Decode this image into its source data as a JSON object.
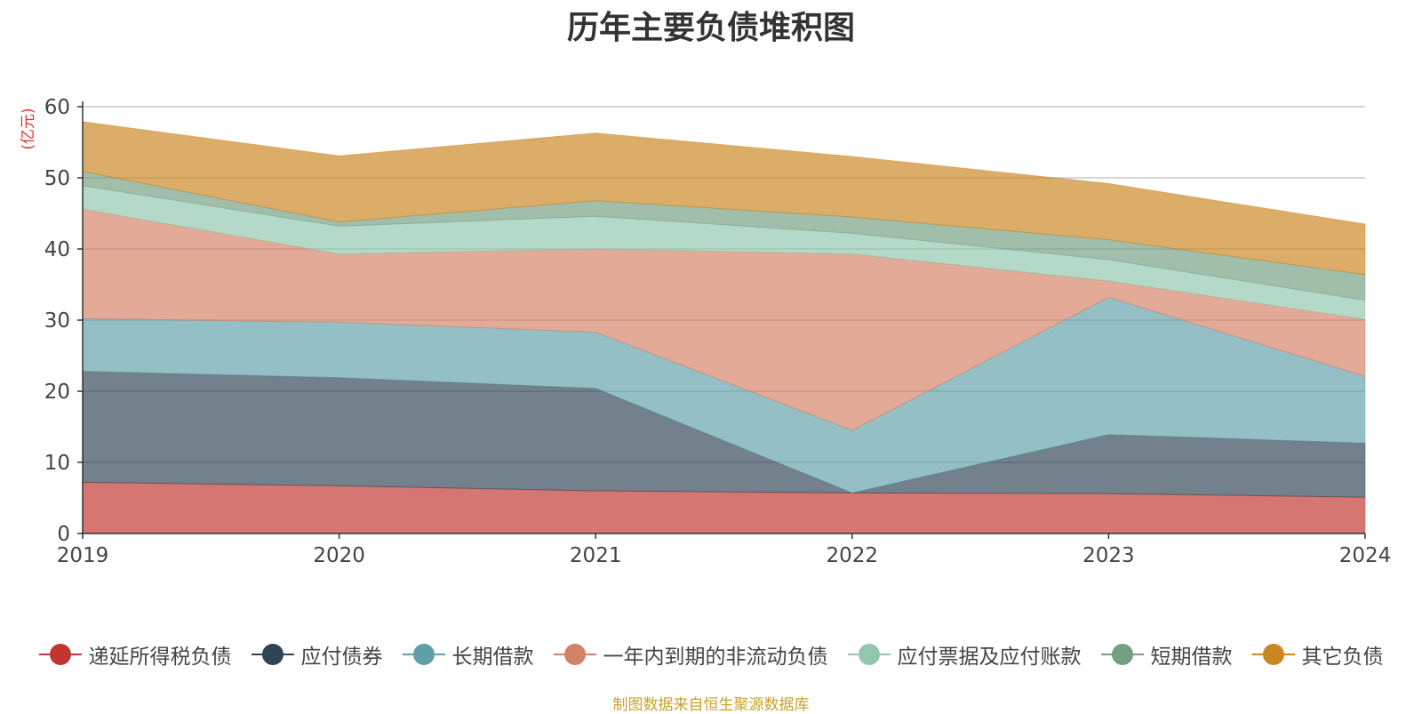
{
  "source_note": "制图数据来自恒生聚源数据库",
  "chart_data": {
    "type": "area",
    "stacked": true,
    "title": "历年主要负债堆积图",
    "ylabel": "(亿元)",
    "xlabel": "",
    "x": [
      "2019",
      "2020",
      "2021",
      "2022",
      "2023",
      "2024"
    ],
    "ylim": [
      0,
      60
    ],
    "yticks": [
      0,
      10,
      20,
      30,
      40,
      50,
      60
    ],
    "grid": true,
    "legend_position": "bottom",
    "series": [
      {
        "name": "递延所得税负债",
        "color": "#c23531",
        "values": [
          7.2,
          6.7,
          6.0,
          5.7,
          5.6,
          5.1
        ]
      },
      {
        "name": "应付债券",
        "color": "#2f4554",
        "values": [
          15.6,
          15.2,
          14.4,
          0.0,
          8.3,
          7.6
        ]
      },
      {
        "name": "长期借款",
        "color": "#61a0a8",
        "values": [
          7.4,
          7.8,
          7.9,
          8.8,
          19.3,
          9.4
        ]
      },
      {
        "name": "一年内到期的非流动负债",
        "color": "#d48265",
        "values": [
          15.4,
          9.6,
          11.7,
          24.8,
          2.3,
          8.0
        ]
      },
      {
        "name": "应付票据及应付账款",
        "color": "#91c7ae",
        "values": [
          3.3,
          3.9,
          4.6,
          2.9,
          3.0,
          2.7
        ]
      },
      {
        "name": "短期借款",
        "color": "#749f83",
        "values": [
          2.0,
          0.6,
          2.2,
          2.3,
          2.8,
          3.6
        ]
      },
      {
        "name": "其它负债",
        "color": "#ca8622",
        "values": [
          7.0,
          9.3,
          9.5,
          8.5,
          7.9,
          7.1
        ]
      }
    ]
  }
}
